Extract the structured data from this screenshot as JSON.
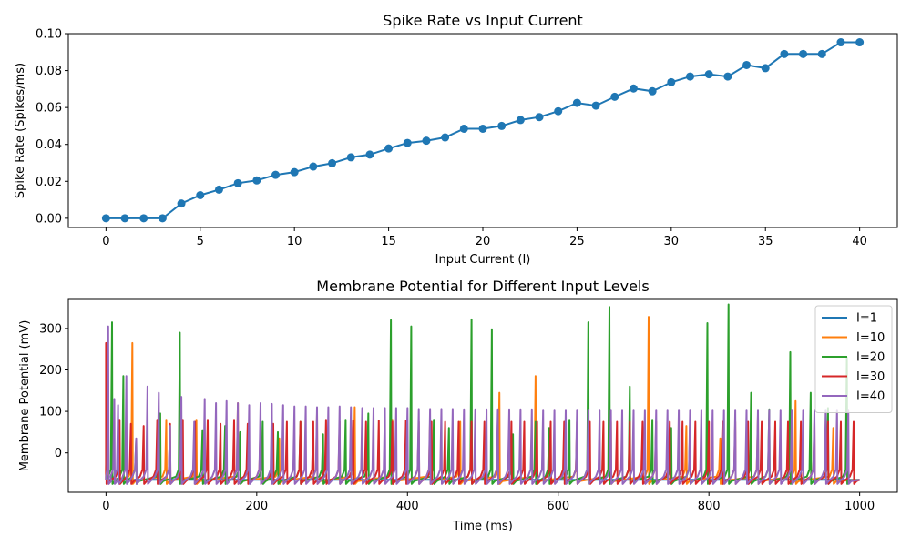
{
  "chart_data": [
    {
      "type": "line",
      "title": "Spike Rate vs Input Current",
      "xlabel": "Input Current (I)",
      "ylabel": "Spike Rate (Spikes/ms)",
      "xlim": [
        -2,
        42
      ],
      "ylim": [
        -0.005,
        0.1
      ],
      "xticks": [
        0,
        5,
        10,
        15,
        20,
        25,
        30,
        35,
        40
      ],
      "yticks": [
        0.0,
        0.02,
        0.04,
        0.06,
        0.08,
        0.1
      ],
      "ytick_labels": [
        "0.00",
        "0.02",
        "0.04",
        "0.06",
        "0.08",
        "0.10"
      ],
      "grid": false,
      "color": "#1f77b4",
      "marker": "circle",
      "x": [
        0,
        1,
        2,
        3,
        4,
        5,
        6,
        7,
        8,
        9,
        10,
        11,
        12,
        13,
        14,
        15,
        16,
        17,
        18,
        19,
        20,
        21,
        22,
        23,
        24,
        25,
        26,
        27,
        28,
        29,
        30,
        31,
        32,
        33,
        34,
        35,
        36,
        37,
        38,
        39,
        40
      ],
      "y": [
        0,
        0,
        0,
        0,
        0.008,
        0.0125,
        0.0155,
        0.019,
        0.0205,
        0.0235,
        0.025,
        0.028,
        0.0298,
        0.033,
        0.0345,
        0.0378,
        0.0408,
        0.042,
        0.0438,
        0.0485,
        0.0485,
        0.05,
        0.0532,
        0.0548,
        0.058,
        0.0625,
        0.061,
        0.0658,
        0.0703,
        0.0688,
        0.0737,
        0.0768,
        0.078,
        0.0768,
        0.083,
        0.0813,
        0.089,
        0.089,
        0.089,
        0.0953,
        0.0953
      ]
    },
    {
      "type": "line",
      "title": "Membrane Potential for Different Input Levels",
      "xlabel": "Time (ms)",
      "ylabel": "Membrane Potential (mV)",
      "xlim": [
        -50,
        1050
      ],
      "ylim": [
        -95,
        370
      ],
      "xticks": [
        0,
        200,
        400,
        600,
        800,
        1000
      ],
      "yticks": [
        0,
        100,
        200,
        300
      ],
      "grid": false,
      "legend_position": "upper right",
      "baseline_mv": -65,
      "series": [
        {
          "name": "I=1",
          "color": "#1f77b4",
          "spike_times": [],
          "spike_peaks": []
        },
        {
          "name": "I=10",
          "color": "#ff7f0e",
          "spike_times": [
            1,
            35,
            80,
            120,
            175,
            230,
            280,
            330,
            380,
            430,
            470,
            522,
            570,
            625,
            670,
            720,
            770,
            815,
            865,
            915,
            965
          ],
          "spike_peaks": [
            60,
            265,
            80,
            80,
            120,
            35,
            95,
            110,
            80,
            80,
            75,
            145,
            185,
            45,
            75,
            328,
            65,
            35,
            90,
            125,
            60
          ]
        },
        {
          "name": "I=20",
          "color": "#2ca02c",
          "spike_times": [
            8,
            23,
            40,
            72,
            98,
            128,
            158,
            178,
            208,
            228,
            258,
            288,
            318,
            348,
            378,
            405,
            435,
            455,
            485,
            512,
            540,
            570,
            588,
            615,
            640,
            668,
            695,
            725,
            750,
            775,
            798,
            826,
            856,
            880,
            908,
            935,
            958,
            983
          ],
          "spike_peaks": [
            315,
            185,
            30,
            95,
            290,
            55,
            65,
            50,
            75,
            50,
            75,
            45,
            80,
            95,
            320,
            305,
            80,
            60,
            322,
            298,
            45,
            75,
            60,
            80,
            315,
            352,
            160,
            80,
            60,
            70,
            313,
            358,
            145,
            105,
            243,
            145,
            108,
            230
          ]
        },
        {
          "name": "I=30",
          "color": "#d62728",
          "spike_times": [
            0,
            18,
            33,
            50,
            68,
            85,
            102,
            118,
            135,
            152,
            170,
            188,
            205,
            222,
            240,
            258,
            275,
            292,
            310,
            328,
            345,
            362,
            380,
            398,
            415,
            432,
            450,
            468,
            485,
            502,
            520,
            538,
            555,
            572,
            590,
            608,
            625,
            642,
            660,
            678,
            695,
            712,
            730,
            748,
            765,
            782,
            800,
            818,
            835,
            852,
            870,
            888,
            905,
            922,
            940,
            958,
            975,
            992
          ],
          "spike_peaks": [
            265,
            80,
            70,
            65,
            80,
            70,
            80,
            75,
            80,
            70,
            80,
            70,
            70,
            70,
            75,
            75,
            75,
            80,
            75,
            78,
            75,
            78,
            75,
            78,
            75,
            75,
            75,
            75,
            75,
            75,
            75,
            75,
            75,
            75,
            75,
            75,
            75,
            75,
            75,
            75,
            75,
            75,
            75,
            75,
            75,
            75,
            75,
            75,
            75,
            75,
            75,
            75,
            75,
            75,
            75,
            75,
            75,
            75
          ]
        },
        {
          "name": "I=40",
          "color": "#9467bd",
          "spike_times": [
            3,
            11,
            16,
            27,
            40,
            55,
            70,
            85,
            100,
            117,
            131,
            146,
            160,
            175,
            190,
            205,
            220,
            235,
            250,
            265,
            280,
            295,
            310,
            325,
            340,
            355,
            370,
            385,
            400,
            415,
            430,
            445,
            460,
            475,
            490,
            505,
            520,
            535,
            550,
            565,
            580,
            595,
            610,
            625,
            640,
            655,
            670,
            685,
            700,
            715,
            730,
            745,
            760,
            775,
            790,
            805,
            820,
            835,
            850,
            865,
            880,
            895,
            910,
            925,
            940,
            955,
            970,
            985
          ],
          "spike_peaks": [
            305,
            130,
            115,
            185,
            35,
            160,
            145,
            65,
            135,
            75,
            130,
            120,
            125,
            120,
            115,
            120,
            118,
            115,
            112,
            112,
            110,
            110,
            112,
            110,
            108,
            108,
            108,
            108,
            108,
            106,
            106,
            106,
            106,
            105,
            105,
            105,
            105,
            105,
            105,
            105,
            104,
            104,
            104,
            104,
            104,
            104,
            104,
            104,
            104,
            104,
            104,
            104,
            104,
            104,
            104,
            104,
            104,
            104,
            104,
            104,
            104,
            104,
            104,
            104,
            104,
            104,
            104,
            104
          ]
        }
      ]
    }
  ]
}
